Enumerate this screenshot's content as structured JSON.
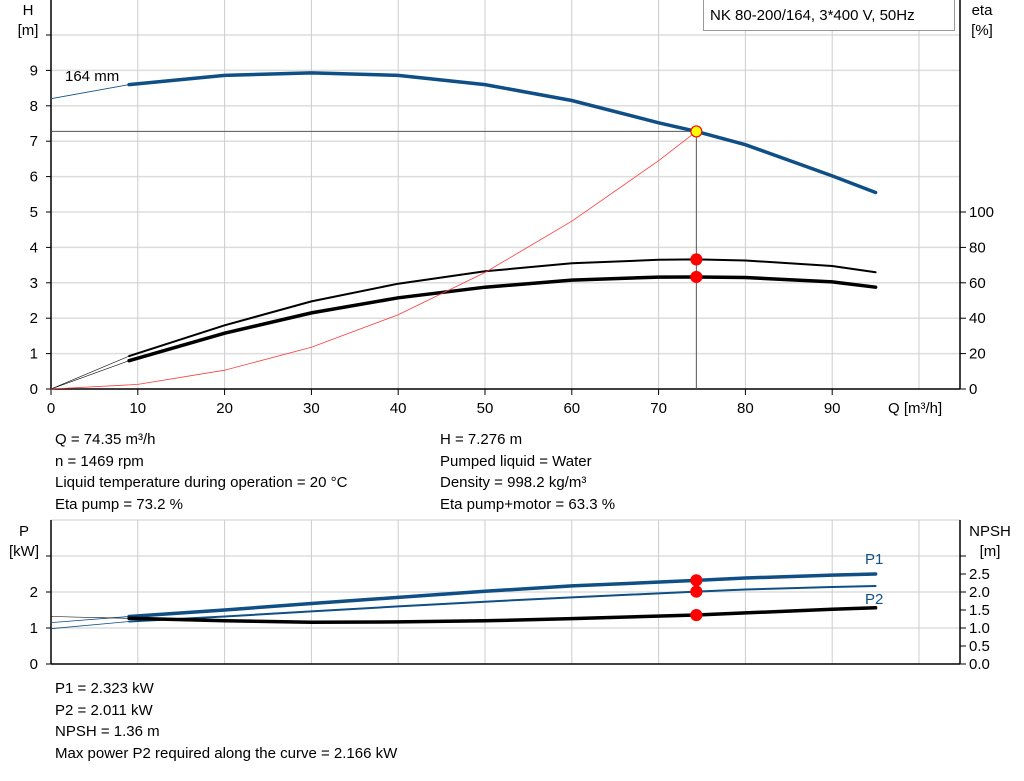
{
  "chart_data": [
    {
      "type": "line",
      "title": "NK 80-200/164, 3*400 V, 50Hz",
      "xlabel": "Q [m³/h]",
      "ylabel": [
        "H",
        "[m]"
      ],
      "y2label": [
        "eta",
        "[%]"
      ],
      "xlim": [
        0,
        104.7
      ],
      "ylim": [
        0,
        11
      ],
      "y2lim": [
        0,
        220
      ],
      "x_ticks": [
        0,
        10,
        20,
        30,
        40,
        50,
        60,
        70,
        80,
        90
      ],
      "y_ticks": [
        0,
        1,
        2,
        3,
        4,
        5,
        6,
        7,
        8,
        9
      ],
      "y_ticks_unlabeled": [
        10
      ],
      "y2_ticks": [
        0,
        20,
        40,
        60,
        80,
        100
      ],
      "grid": true,
      "impeller_label": "164 mm",
      "colors": {
        "head": "#0f4f86",
        "eta": "#000000",
        "system": "#ff3b3b",
        "point": "#ff0000",
        "duty_point_fill": "#ffff00"
      },
      "series": [
        {
          "key": "head",
          "axis": "left",
          "x": [
            0,
            9
          ],
          "y": [
            8.2,
            8.6
          ],
          "style": "thin-blue"
        },
        {
          "key": "head",
          "axis": "left",
          "x": [
            9,
            20,
            30,
            40,
            50,
            60,
            70,
            74.35,
            80,
            90,
            95
          ],
          "y": [
            8.6,
            8.86,
            8.93,
            8.86,
            8.6,
            8.15,
            7.52,
            7.276,
            6.9,
            6.02,
            5.55
          ],
          "style": "thick-blue"
        },
        {
          "key": "eta_pump",
          "axis": "right",
          "x": [
            0,
            9
          ],
          "y": [
            0,
            18.6
          ],
          "style": "thin-black"
        },
        {
          "key": "eta_pump",
          "axis": "right",
          "x": [
            9,
            20,
            30,
            40,
            50,
            60,
            70,
            74.35,
            80,
            90,
            95
          ],
          "y": [
            18.6,
            36,
            49.5,
            59.5,
            66.5,
            71,
            73,
            73.2,
            72.6,
            69.5,
            66
          ],
          "style": "medium-black"
        },
        {
          "key": "eta_total",
          "axis": "right",
          "x": [
            0,
            9
          ],
          "y": [
            0,
            16
          ],
          "style": "thin-black"
        },
        {
          "key": "eta_total",
          "axis": "right",
          "x": [
            9,
            20,
            30,
            40,
            50,
            60,
            70,
            74.35,
            80,
            90,
            95
          ],
          "y": [
            16,
            31.5,
            43,
            51.5,
            57.5,
            61.5,
            63.2,
            63.3,
            63,
            60.5,
            57.5
          ],
          "style": "thick-black"
        },
        {
          "key": "system",
          "axis": "left",
          "x": [
            0,
            10,
            20,
            30,
            40,
            50,
            60,
            70,
            74.35
          ],
          "y": [
            0,
            0.13,
            0.53,
            1.18,
            2.1,
            3.29,
            4.74,
            6.45,
            7.276
          ],
          "style": "thin-red"
        }
      ],
      "duty_point": {
        "Q": 74.35,
        "H": 7.276,
        "eta_pump": 73.2,
        "eta_total": 63.3
      }
    },
    {
      "type": "line",
      "ylabel": [
        "P",
        "[kW]"
      ],
      "y2label": [
        "NPSH",
        "[m]"
      ],
      "xlim": [
        0,
        104.7
      ],
      "ylim": [
        0,
        3.1
      ],
      "y_ticks": [
        0,
        1,
        2
      ],
      "y_ticks_unlabeled": [
        3
      ],
      "y2_ticks": [
        "0.0",
        "0.5",
        "1.0",
        "1.5",
        "2.0",
        "2.5"
      ],
      "y2_ticks_unlabeled": [
        3.0
      ],
      "grid": true,
      "series": [
        {
          "key": "P1",
          "name": "P1",
          "x": [
            0,
            9
          ],
          "y": [
            1.15,
            1.32
          ],
          "style": "thin-blue"
        },
        {
          "key": "P1",
          "name": "P1",
          "x": [
            9,
            20,
            30,
            40,
            50,
            60,
            74.35,
            80,
            90,
            95
          ],
          "y": [
            1.32,
            1.5,
            1.68,
            1.85,
            2.02,
            2.17,
            2.323,
            2.39,
            2.47,
            2.5
          ],
          "style": "thick-blue"
        },
        {
          "key": "P2",
          "name": "P2",
          "x": [
            0,
            9
          ],
          "y": [
            0.98,
            1.18
          ],
          "style": "thin-blue"
        },
        {
          "key": "P2",
          "name": "P2",
          "x": [
            9,
            20,
            30,
            40,
            50,
            60,
            74.35,
            80,
            90,
            95
          ],
          "y": [
            1.18,
            1.32,
            1.46,
            1.6,
            1.73,
            1.85,
            2.011,
            2.07,
            2.14,
            2.166
          ],
          "style": "medium-blue"
        },
        {
          "key": "NPSH",
          "x": [
            0,
            9
          ],
          "y": [
            1.32,
            1.27
          ],
          "style": "thin-black"
        },
        {
          "key": "NPSH",
          "x": [
            9,
            20,
            30,
            40,
            50,
            60,
            74.35,
            80,
            90,
            95
          ],
          "y": [
            1.27,
            1.2,
            1.16,
            1.17,
            1.2,
            1.26,
            1.36,
            1.42,
            1.52,
            1.56
          ],
          "style": "thick-black"
        }
      ],
      "duty_point": {
        "Q": 74.35,
        "P1": 2.323,
        "P2": 2.011,
        "NPSH": 1.36
      }
    }
  ],
  "info_top": {
    "left": [
      "Q = 74.35 m³/h",
      "n = 1469 rpm",
      "Liquid temperature during operation = 20 °C",
      "Eta pump = 73.2 %"
    ],
    "right": [
      "H = 7.276 m",
      "Pumped liquid = Water",
      "Density = 998.2 kg/m³",
      "Eta pump+motor = 63.3 %"
    ]
  },
  "info_bottom": [
    "P1 = 2.323 kW",
    "P2 = 2.011 kW",
    "NPSH = 1.36 m",
    "Max power P2 required along the curve = 2.166 kW"
  ]
}
